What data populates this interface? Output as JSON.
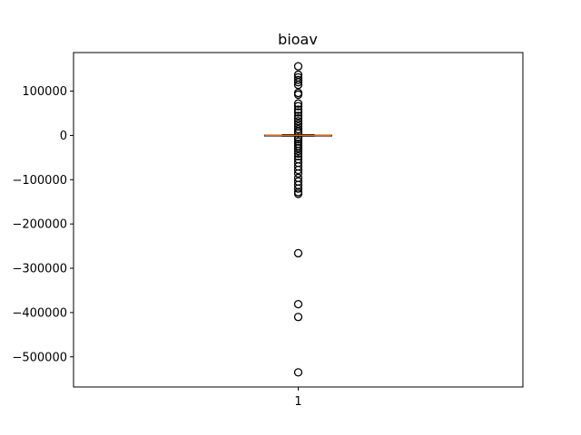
{
  "chart_data": {
    "type": "box",
    "title": "bioav",
    "xlabel": "",
    "ylabel": "",
    "categories": [
      "1"
    ],
    "ylim": [
      -568000,
      187000
    ],
    "y_ticks": [
      100000,
      0,
      -100000,
      -200000,
      -300000,
      -400000,
      -500000
    ],
    "y_tick_labels": [
      "100000",
      "0",
      "−100000",
      "−200000",
      "−300000",
      "−400000",
      "−500000"
    ],
    "x_tick_labels": [
      "1"
    ],
    "series": [
      {
        "q1": -600,
        "median": 0,
        "q3": 600,
        "whisker_low": -1800,
        "whisker_high": 1800,
        "outliers": [
          156000,
          137000,
          131000,
          125000,
          120000,
          114000,
          96000,
          92000,
          72000,
          66000,
          58000,
          52000,
          44000,
          38000,
          32000,
          26000,
          20000,
          14000,
          9000,
          5000,
          -5000,
          -9000,
          -14000,
          -19000,
          -24000,
          -29000,
          -35000,
          -41000,
          -47000,
          -54000,
          -62000,
          -70000,
          -78000,
          -86000,
          -96000,
          -104000,
          -112000,
          -120000,
          -128000,
          -132000,
          -266000,
          -381000,
          -410000,
          -535000
        ]
      }
    ],
    "colors": {
      "median": "#d86a19",
      "box": "#000000",
      "flier": "#000000",
      "axes": "#000000"
    },
    "grid": false
  }
}
